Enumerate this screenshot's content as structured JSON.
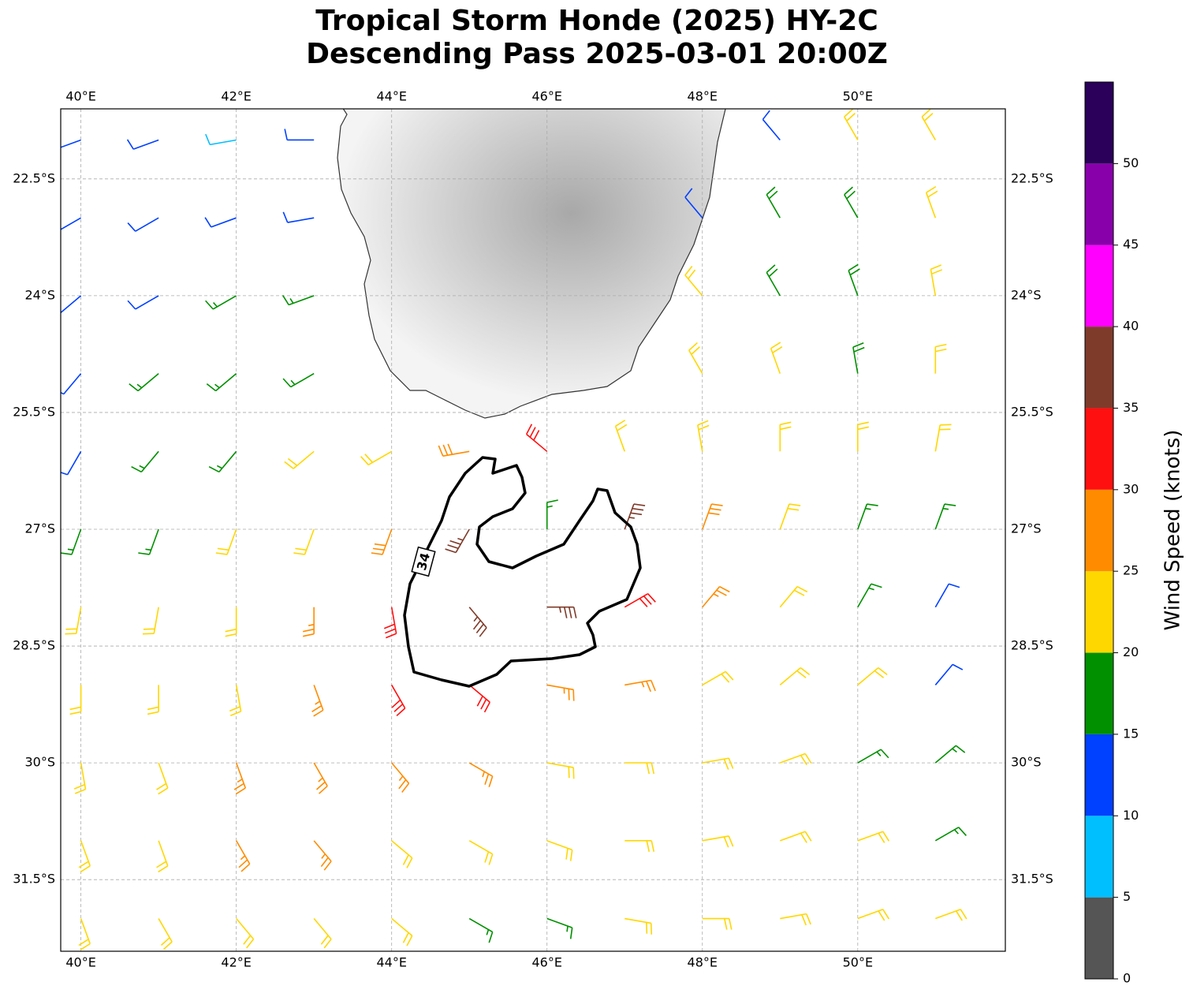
{
  "title": [
    "Tropical Storm Honde (2025) HY-2C",
    "Descending Pass 2025-03-01 20:00Z"
  ],
  "map": {
    "lon_range": [
      39.74,
      51.9
    ],
    "lat_range": [
      -32.42,
      -21.6
    ],
    "lon_ticks": [
      {
        "value": 40,
        "label": "40°E"
      },
      {
        "value": 42,
        "label": "42°E"
      },
      {
        "value": 44,
        "label": "44°E"
      },
      {
        "value": 46,
        "label": "46°E"
      },
      {
        "value": 48,
        "label": "48°E"
      },
      {
        "value": 50,
        "label": "50°E"
      }
    ],
    "lat_ticks": [
      {
        "value": -22.5,
        "label": "22.5°S"
      },
      {
        "value": -24,
        "label": "24°S"
      },
      {
        "value": -25.5,
        "label": "25.5°S"
      },
      {
        "value": -27,
        "label": "27°S"
      },
      {
        "value": -28.5,
        "label": "28.5°S"
      },
      {
        "value": -30,
        "label": "30°S"
      },
      {
        "value": -31.5,
        "label": "31.5°S"
      }
    ]
  },
  "wind": {
    "lon": [
      40,
      41,
      42,
      43,
      44,
      45,
      46,
      47,
      48,
      49,
      50,
      51
    ],
    "lat": [
      -22,
      -23,
      -24,
      -25,
      -26,
      -27,
      -28,
      -29,
      -30,
      -31,
      -32
    ],
    "speed": [
      [
        12,
        12,
        8,
        12,
        null,
        null,
        null,
        null,
        null,
        12,
        22,
        22
      ],
      [
        12,
        12,
        12,
        12,
        null,
        null,
        null,
        null,
        12,
        18,
        18,
        22
      ],
      [
        12,
        12,
        17,
        17,
        null,
        null,
        null,
        null,
        22,
        18,
        18,
        22
      ],
      [
        12,
        17,
        17,
        17,
        null,
        null,
        null,
        null,
        22,
        22,
        18,
        22
      ],
      [
        12,
        17,
        17,
        22,
        22,
        28,
        32,
        22,
        22,
        22,
        22,
        22
      ],
      [
        17,
        17,
        22,
        22,
        28,
        37,
        17,
        37,
        28,
        22,
        17,
        17
      ],
      [
        22,
        22,
        22,
        27,
        32,
        37,
        37,
        32,
        27,
        22,
        17,
        12
      ],
      [
        22,
        22,
        22,
        27,
        32,
        32,
        27,
        27,
        22,
        22,
        22,
        12
      ],
      [
        22,
        22,
        27,
        27,
        27,
        27,
        22,
        22,
        22,
        22,
        17,
        17
      ],
      [
        22,
        22,
        27,
        27,
        22,
        22,
        22,
        22,
        22,
        22,
        22,
        17
      ],
      [
        22,
        22,
        22,
        22,
        22,
        17,
        17,
        22,
        22,
        22,
        22,
        22
      ]
    ],
    "direction": [
      [
        250,
        250,
        260,
        270,
        null,
        null,
        null,
        null,
        null,
        320,
        330,
        330
      ],
      [
        240,
        240,
        250,
        260,
        null,
        null,
        null,
        null,
        320,
        330,
        330,
        340
      ],
      [
        230,
        240,
        240,
        250,
        null,
        null,
        null,
        null,
        320,
        330,
        340,
        350
      ],
      [
        220,
        230,
        230,
        240,
        null,
        null,
        null,
        null,
        330,
        340,
        350,
        360
      ],
      [
        210,
        220,
        220,
        230,
        240,
        260,
        310,
        340,
        350,
        360,
        0,
        10
      ],
      [
        200,
        200,
        200,
        200,
        200,
        210,
        0,
        20,
        20,
        20,
        20,
        20
      ],
      [
        190,
        190,
        180,
        180,
        170,
        140,
        90,
        60,
        40,
        40,
        30,
        30
      ],
      [
        180,
        180,
        170,
        160,
        150,
        130,
        100,
        80,
        60,
        50,
        50,
        40
      ],
      [
        170,
        160,
        160,
        150,
        140,
        120,
        100,
        90,
        80,
        70,
        60,
        50
      ],
      [
        160,
        160,
        150,
        140,
        130,
        120,
        110,
        90,
        80,
        70,
        70,
        60
      ],
      [
        160,
        150,
        140,
        140,
        130,
        120,
        110,
        100,
        90,
        80,
        70,
        70
      ]
    ]
  },
  "contour_label": "34",
  "colorbar": {
    "label": "Wind Speed (knots)",
    "bounds": [
      0,
      5,
      10,
      15,
      20,
      25,
      30,
      35,
      40,
      45,
      50,
      55
    ],
    "colors": [
      "#555555",
      "#00bfff",
      "#0040ff",
      "#009000",
      "#ffd700",
      "#ff8c00",
      "#ff1010",
      "#7f3b2a",
      "#ff00ff",
      "#8800aa",
      "#2a005a"
    ],
    "ticks": [
      0,
      5,
      10,
      15,
      20,
      25,
      30,
      35,
      40,
      45,
      50
    ]
  }
}
